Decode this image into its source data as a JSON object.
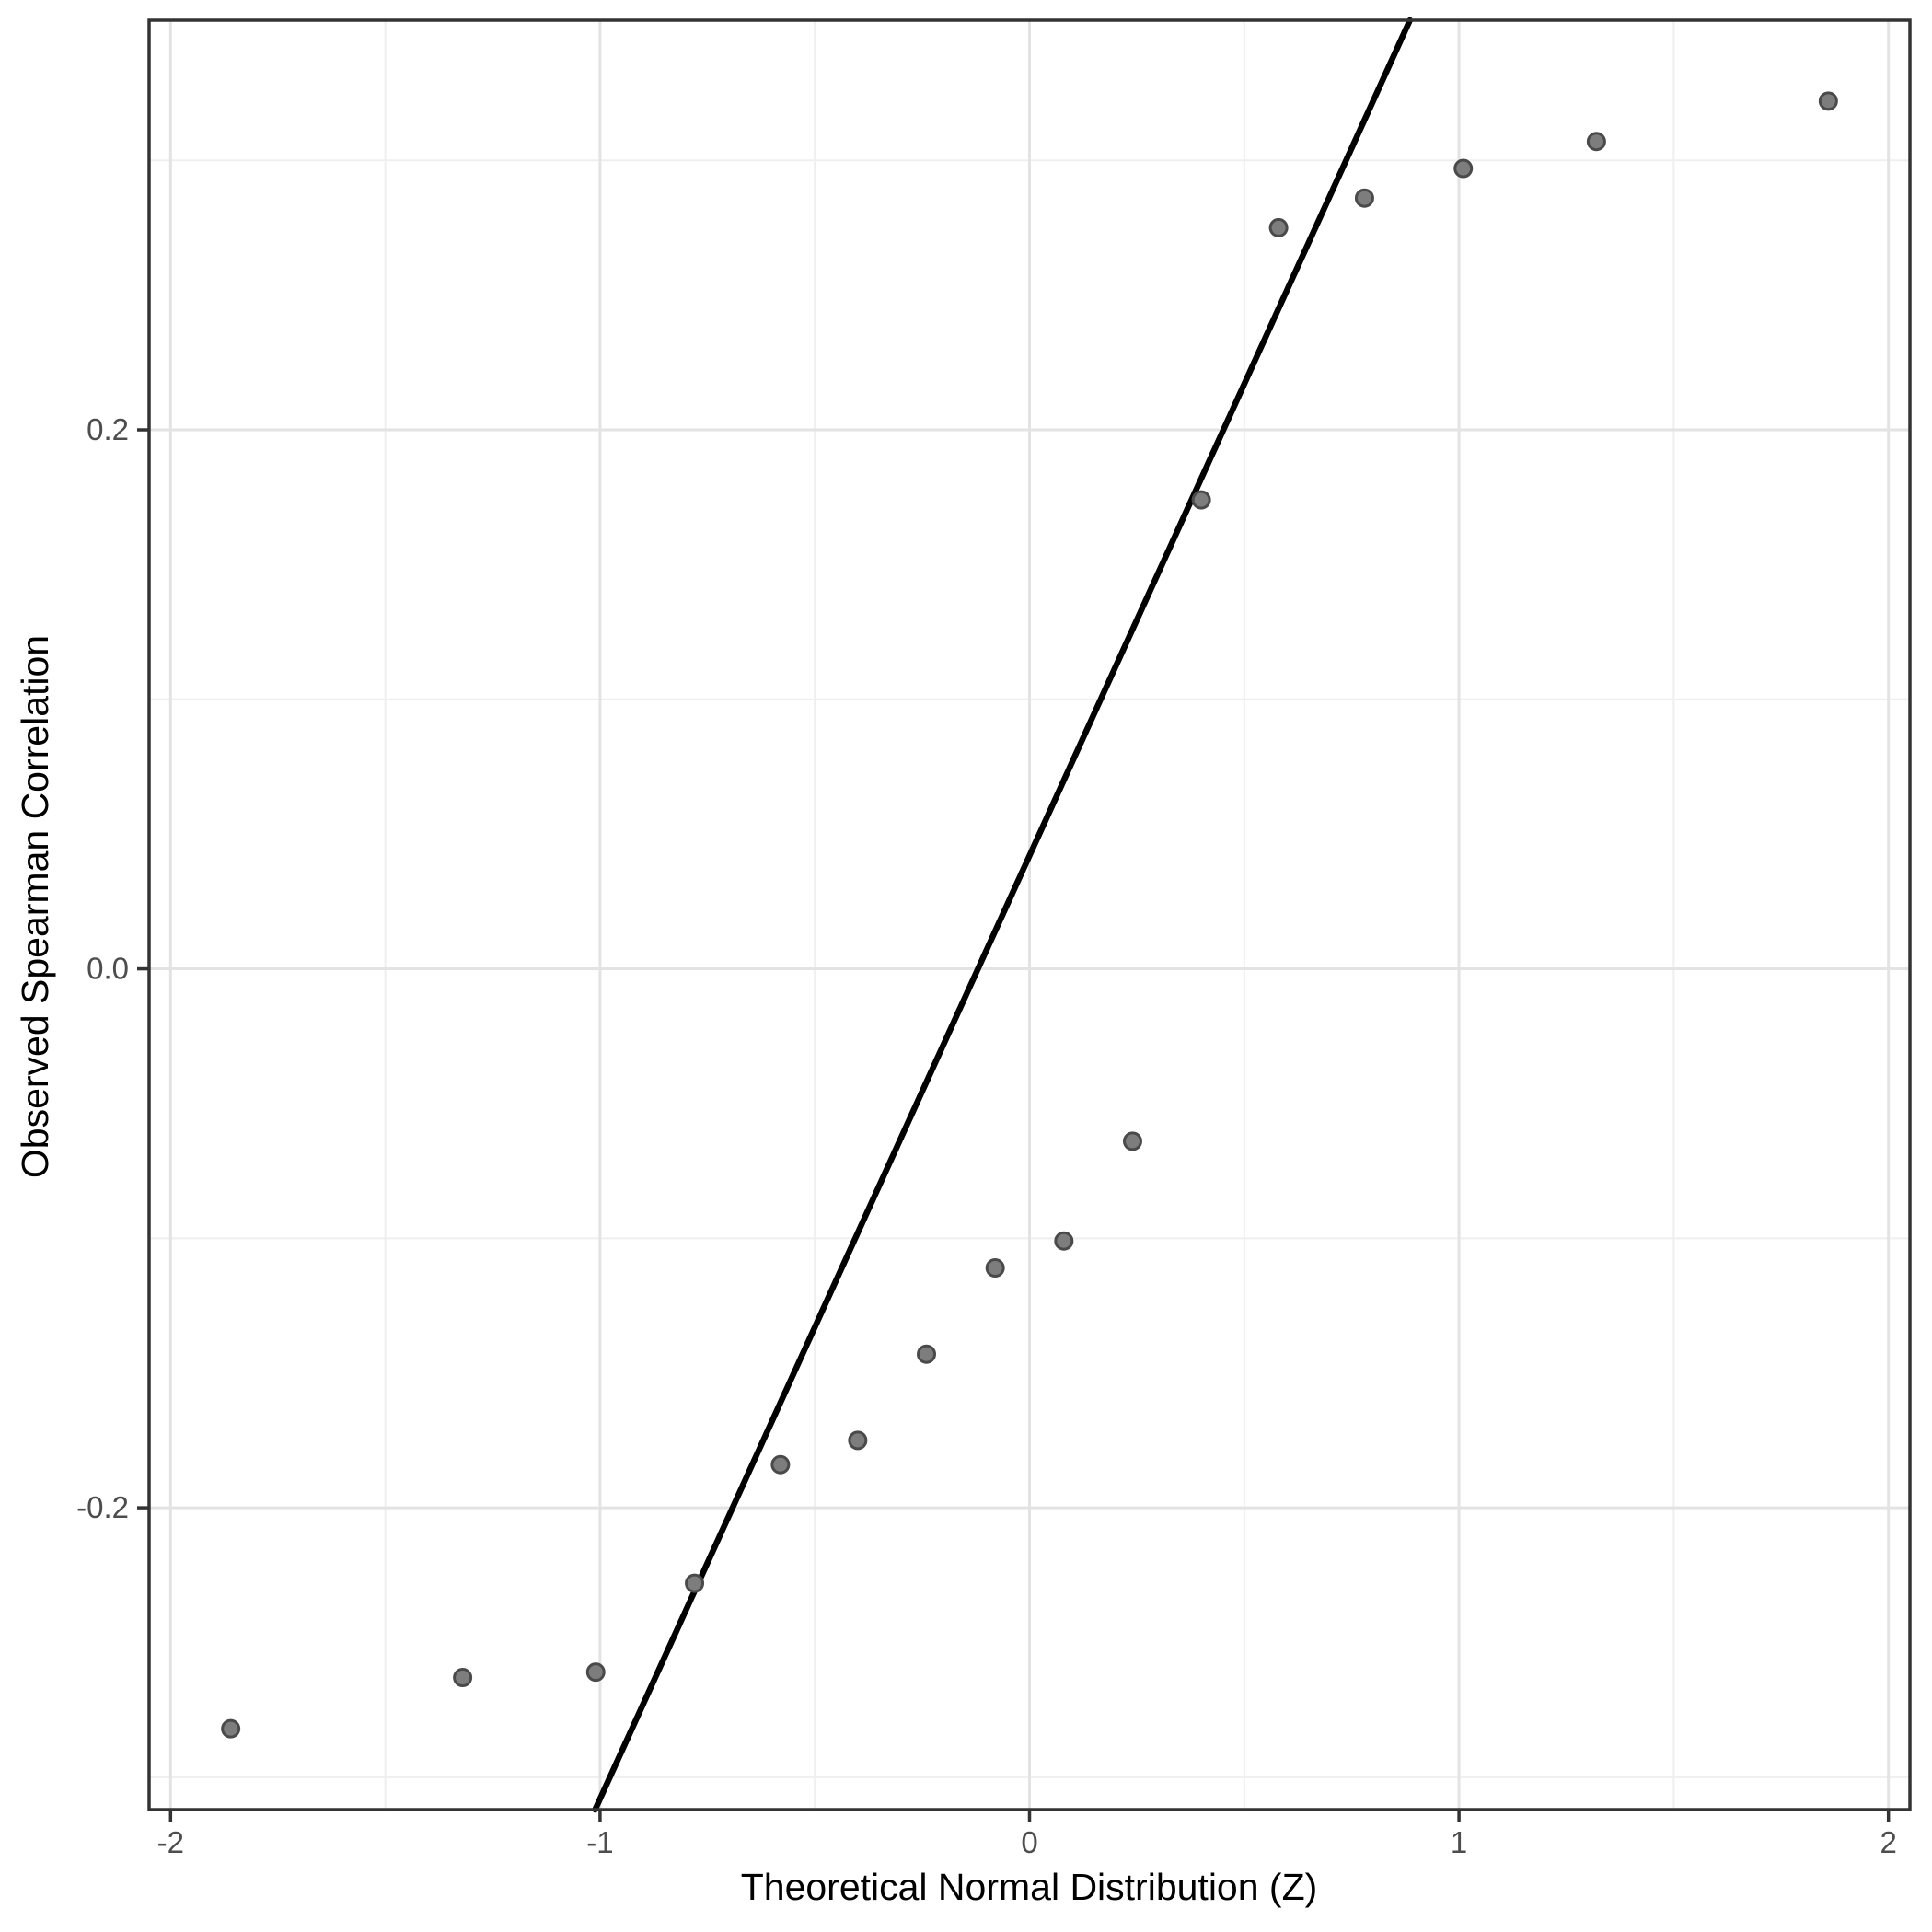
{
  "figure": {
    "background": "#ffffff"
  },
  "chart_data": {
    "type": "scatter",
    "title": "",
    "xlabel": "Theoretical Normal Distribution (Z)",
    "ylabel": "Observed Spearman Correlation",
    "xlim": [
      -2.05,
      2.05
    ],
    "ylim": [
      -0.312,
      0.352
    ],
    "grid": true,
    "legend": false,
    "x_axis": {
      "major_ticks": [
        -2,
        -1,
        0,
        1,
        2
      ],
      "tick_labels": [
        "-2",
        "-1",
        "0",
        "1",
        "2"
      ],
      "minor_ticks": [
        -1.5,
        -0.5,
        0.5,
        1.5
      ]
    },
    "y_axis": {
      "major_ticks": [
        0.2,
        0.0,
        -0.2
      ],
      "tick_labels": [
        "0.2",
        "0.0",
        "-0.2"
      ],
      "minor_ticks": [
        0.3,
        0.1,
        -0.1,
        -0.3
      ]
    },
    "series": [
      {
        "name": "sample-quantile-points",
        "x": [
          -1.86,
          -1.32,
          -1.01,
          -0.78,
          -0.58,
          -0.4,
          -0.24,
          -0.08,
          0.08,
          0.24,
          0.4,
          0.58,
          0.78,
          1.01,
          1.32,
          1.86
        ],
        "y": [
          -0.282,
          -0.263,
          -0.261,
          -0.228,
          -0.184,
          -0.175,
          -0.143,
          -0.111,
          -0.101,
          -0.064,
          0.174,
          0.275,
          0.286,
          0.297,
          0.307,
          0.322
        ]
      }
    ],
    "reference_line": {
      "name": "qq-line",
      "slope": 0.35,
      "intercept": 0.042
    },
    "colors": {
      "point_fill": "#7d7d7d",
      "point_stroke": "#4a4a4a",
      "reference_line": "#000000",
      "grid_major": "#e3e3e3",
      "grid_minor": "#efefef",
      "panel_border": "#333333",
      "tick_mark": "#333333",
      "tick_label": "#4d4d4d",
      "axis_title": "#000000",
      "panel_background": "#ffffff"
    }
  }
}
